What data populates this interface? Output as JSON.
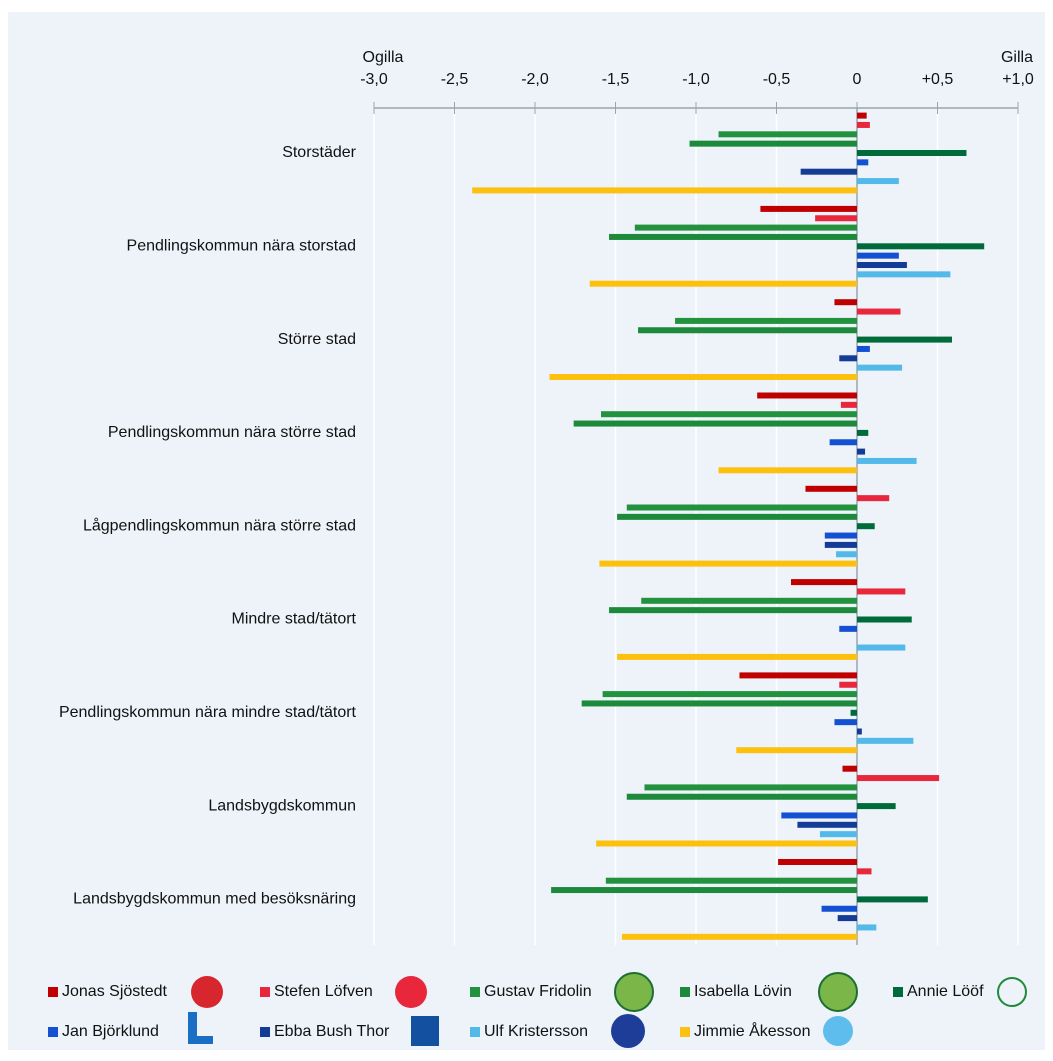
{
  "chart_data": {
    "type": "bar",
    "orientation": "horizontal",
    "left_label": "Ogilla",
    "right_label": "Gilla",
    "categories": [
      "Storstäder",
      "Pendlingskommun nära storstad",
      "Större stad",
      "Pendlingskommun nära större stad",
      "Lågpendlingskommun nära större stad",
      "Mindre stad/tätort",
      "Pendlingskommun nära mindre stad/tätort",
      "Landsbygdskommun",
      "Landsbygdskommun med besöksnäring"
    ],
    "series": [
      {
        "name": "Jonas Sjöstedt",
        "color": "#c00000",
        "values": [
          0.06,
          -0.6,
          -0.14,
          -0.62,
          -0.32,
          -0.41,
          -0.73,
          -0.09,
          -0.49
        ]
      },
      {
        "name": "Stefen Löfven",
        "color": "#e8263c",
        "values": [
          0.08,
          -0.26,
          0.27,
          -0.1,
          0.2,
          0.3,
          -0.11,
          0.51,
          0.09
        ]
      },
      {
        "name": "Gustav Fridolin",
        "color": "#23923f",
        "values": [
          -0.86,
          -1.38,
          -1.13,
          -1.59,
          -1.43,
          -1.34,
          -1.58,
          -1.32,
          -1.56
        ]
      },
      {
        "name": "Isabella Lövin",
        "color": "#1c8a3a",
        "values": [
          -1.04,
          -1.54,
          -1.36,
          -1.76,
          -1.49,
          -1.54,
          -1.71,
          -1.43,
          -1.9
        ]
      },
      {
        "name": "Annie Lööf",
        "color": "#006b3a",
        "values": [
          0.68,
          0.79,
          0.59,
          0.07,
          0.11,
          0.34,
          -0.04,
          0.24,
          0.44
        ]
      },
      {
        "name": "Jan Björklund",
        "color": "#1450d2",
        "values": [
          0.07,
          0.26,
          0.08,
          -0.17,
          -0.2,
          -0.11,
          -0.14,
          -0.47,
          -0.22
        ]
      },
      {
        "name": "Ebba Bush Thor",
        "color": "#143c96",
        "values": [
          -0.35,
          0.31,
          -0.11,
          0.05,
          -0.2,
          0,
          0.03,
          -0.37,
          -0.12
        ]
      },
      {
        "name": "Ulf Kristersson",
        "color": "#52b9e9",
        "values": [
          0.26,
          0.58,
          0.28,
          0.37,
          -0.13,
          0.3,
          0.35,
          -0.23,
          0.12
        ]
      },
      {
        "name": "Jimmie Åkesson",
        "color": "#fcc10e",
        "values": [
          -2.39,
          -1.66,
          -1.91,
          -0.86,
          -1.6,
          -1.49,
          -0.75,
          -1.62,
          -1.46
        ]
      }
    ],
    "xlim": [
      -3,
      1
    ],
    "xticks": [
      {
        "value": -3,
        "label": "-3,0"
      },
      {
        "value": -2.5,
        "label": "-2,5"
      },
      {
        "value": -2,
        "label": "-2,0"
      },
      {
        "value": -1.5,
        "label": "-1,5"
      },
      {
        "value": -1,
        "label": "-1,0"
      },
      {
        "value": -0.5,
        "label": "-0,5"
      },
      0,
      {
        "value": 0.5,
        "label": "+0,5"
      },
      {
        "value": 1,
        "label": "+1,0"
      }
    ],
    "grid": true
  }
}
